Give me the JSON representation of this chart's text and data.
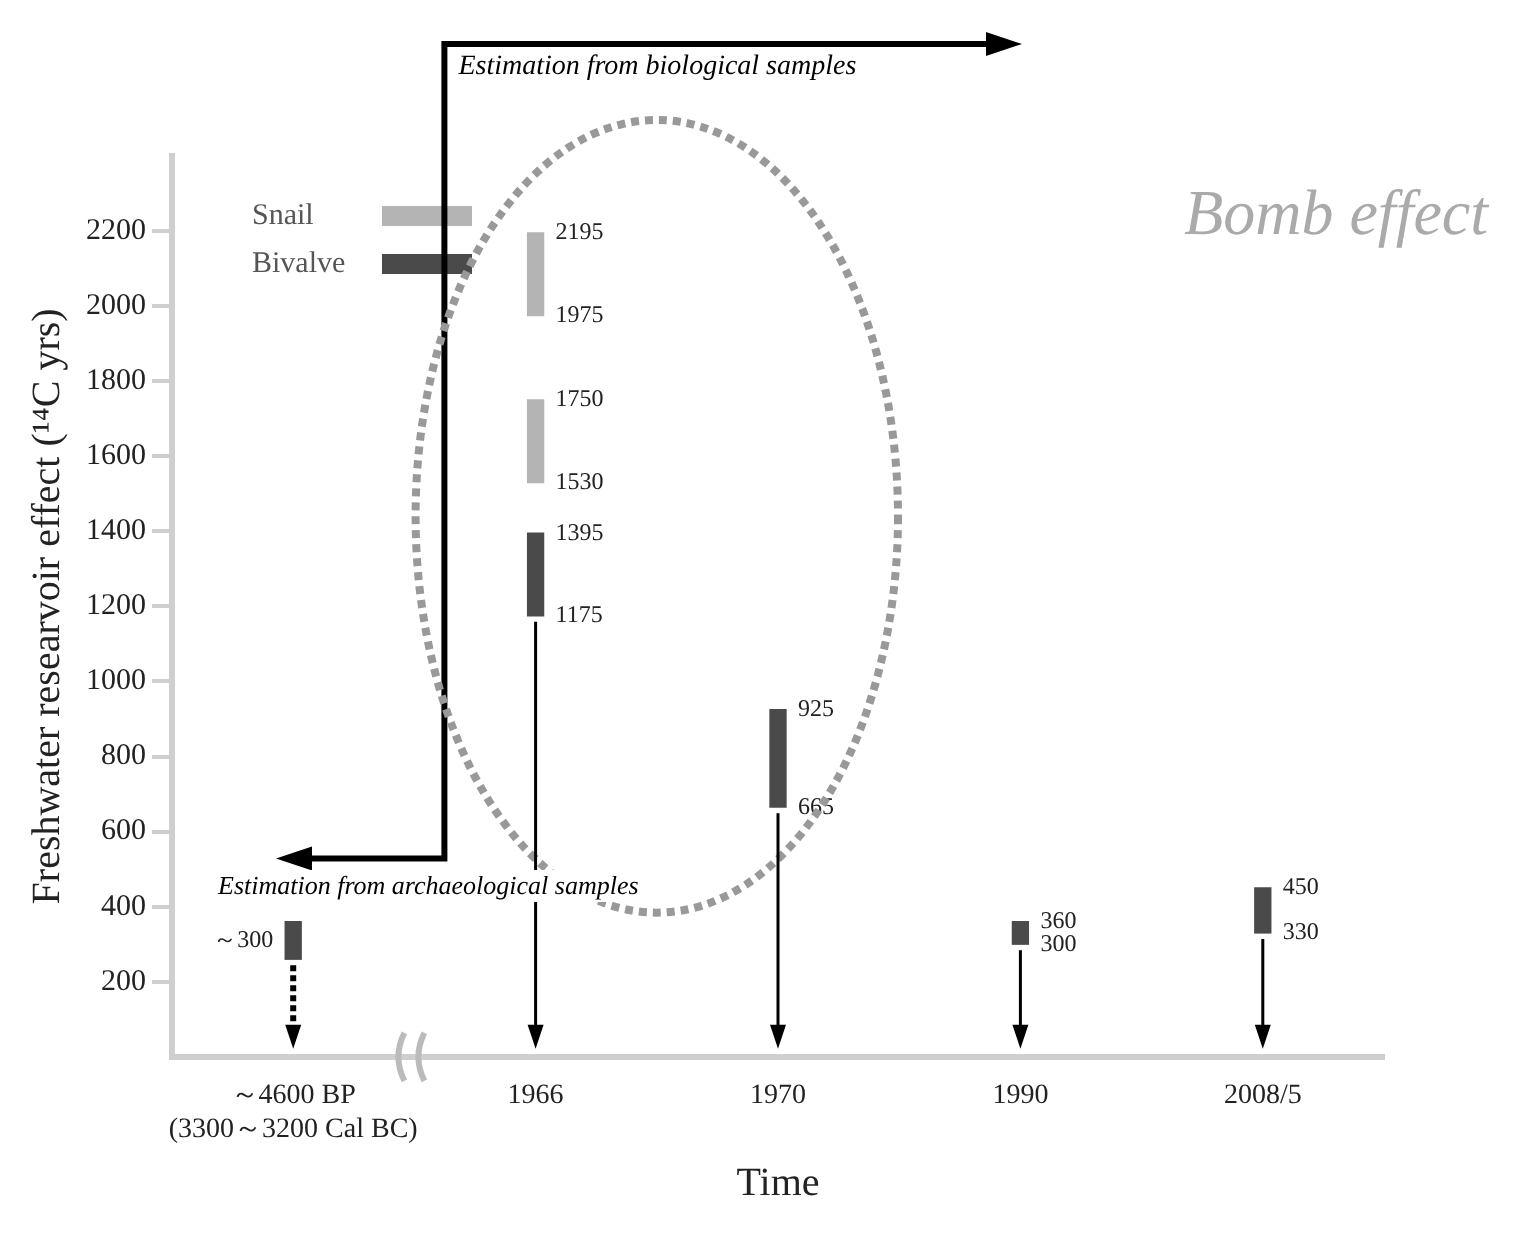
{
  "chart_data": {
    "type": "bar",
    "xlabel": "Time",
    "ylabel": "Freshwater researvoir effect (¹⁴C yrs)",
    "categories": [
      "～4600 BP\n(3300～3200 Cal BC)",
      "1966",
      "1970",
      "1990",
      "2008/5"
    ],
    "series": [
      {
        "name": "Snail",
        "color": "#b4b4b4",
        "values": [
          null,
          220,
          null,
          null,
          null
        ],
        "base": [
          null,
          1975,
          null,
          null,
          null
        ]
      },
      {
        "color": "#b4b4b4",
        "values": [
          null,
          220,
          null,
          null,
          null
        ],
        "base": [
          null,
          1530,
          null,
          null,
          null
        ]
      },
      {
        "name": "Bivalve",
        "color": "#4a4a4a",
        "values": [
          100,
          220,
          260,
          60,
          120
        ],
        "base": [
          260,
          1175,
          665,
          300,
          330
        ]
      }
    ],
    "ylim": [
      0,
      2400
    ],
    "yticks": [
      200,
      400,
      600,
      800,
      1000,
      1200,
      1400,
      1600,
      1800,
      2000,
      2200
    ],
    "grid": false,
    "legend": "top left",
    "annotations": [
      "Estimation from biological samples",
      "Estimation from archaeological samples",
      "Bomb effect",
      {
        "text": "2195",
        "x": "1966",
        "y": 2195
      },
      {
        "text": "1975",
        "x": "1966",
        "y": 1975
      },
      {
        "text": "1750",
        "x": "1966",
        "y": 1750
      },
      {
        "text": "1530",
        "x": "1966",
        "y": 1530
      },
      {
        "text": "1395",
        "x": "1966",
        "y": 1395
      },
      {
        "text": "1175",
        "x": "1966",
        "y": 1175
      },
      {
        "text": "925",
        "x": "1970",
        "y": 925
      },
      {
        "text": "665",
        "x": "1970",
        "y": 665
      },
      {
        "text": "360",
        "x": "1990",
        "y": 360
      },
      {
        "text": "300",
        "x": "1990",
        "y": 300
      },
      {
        "text": "450",
        "x": "2008/5",
        "y": 450
      },
      {
        "text": "330",
        "x": "2008/5",
        "y": 330
      },
      {
        "text": "～300",
        "x": "～4600 BP\n(3300～3200 Cal BC)",
        "y": 310
      }
    ]
  }
}
